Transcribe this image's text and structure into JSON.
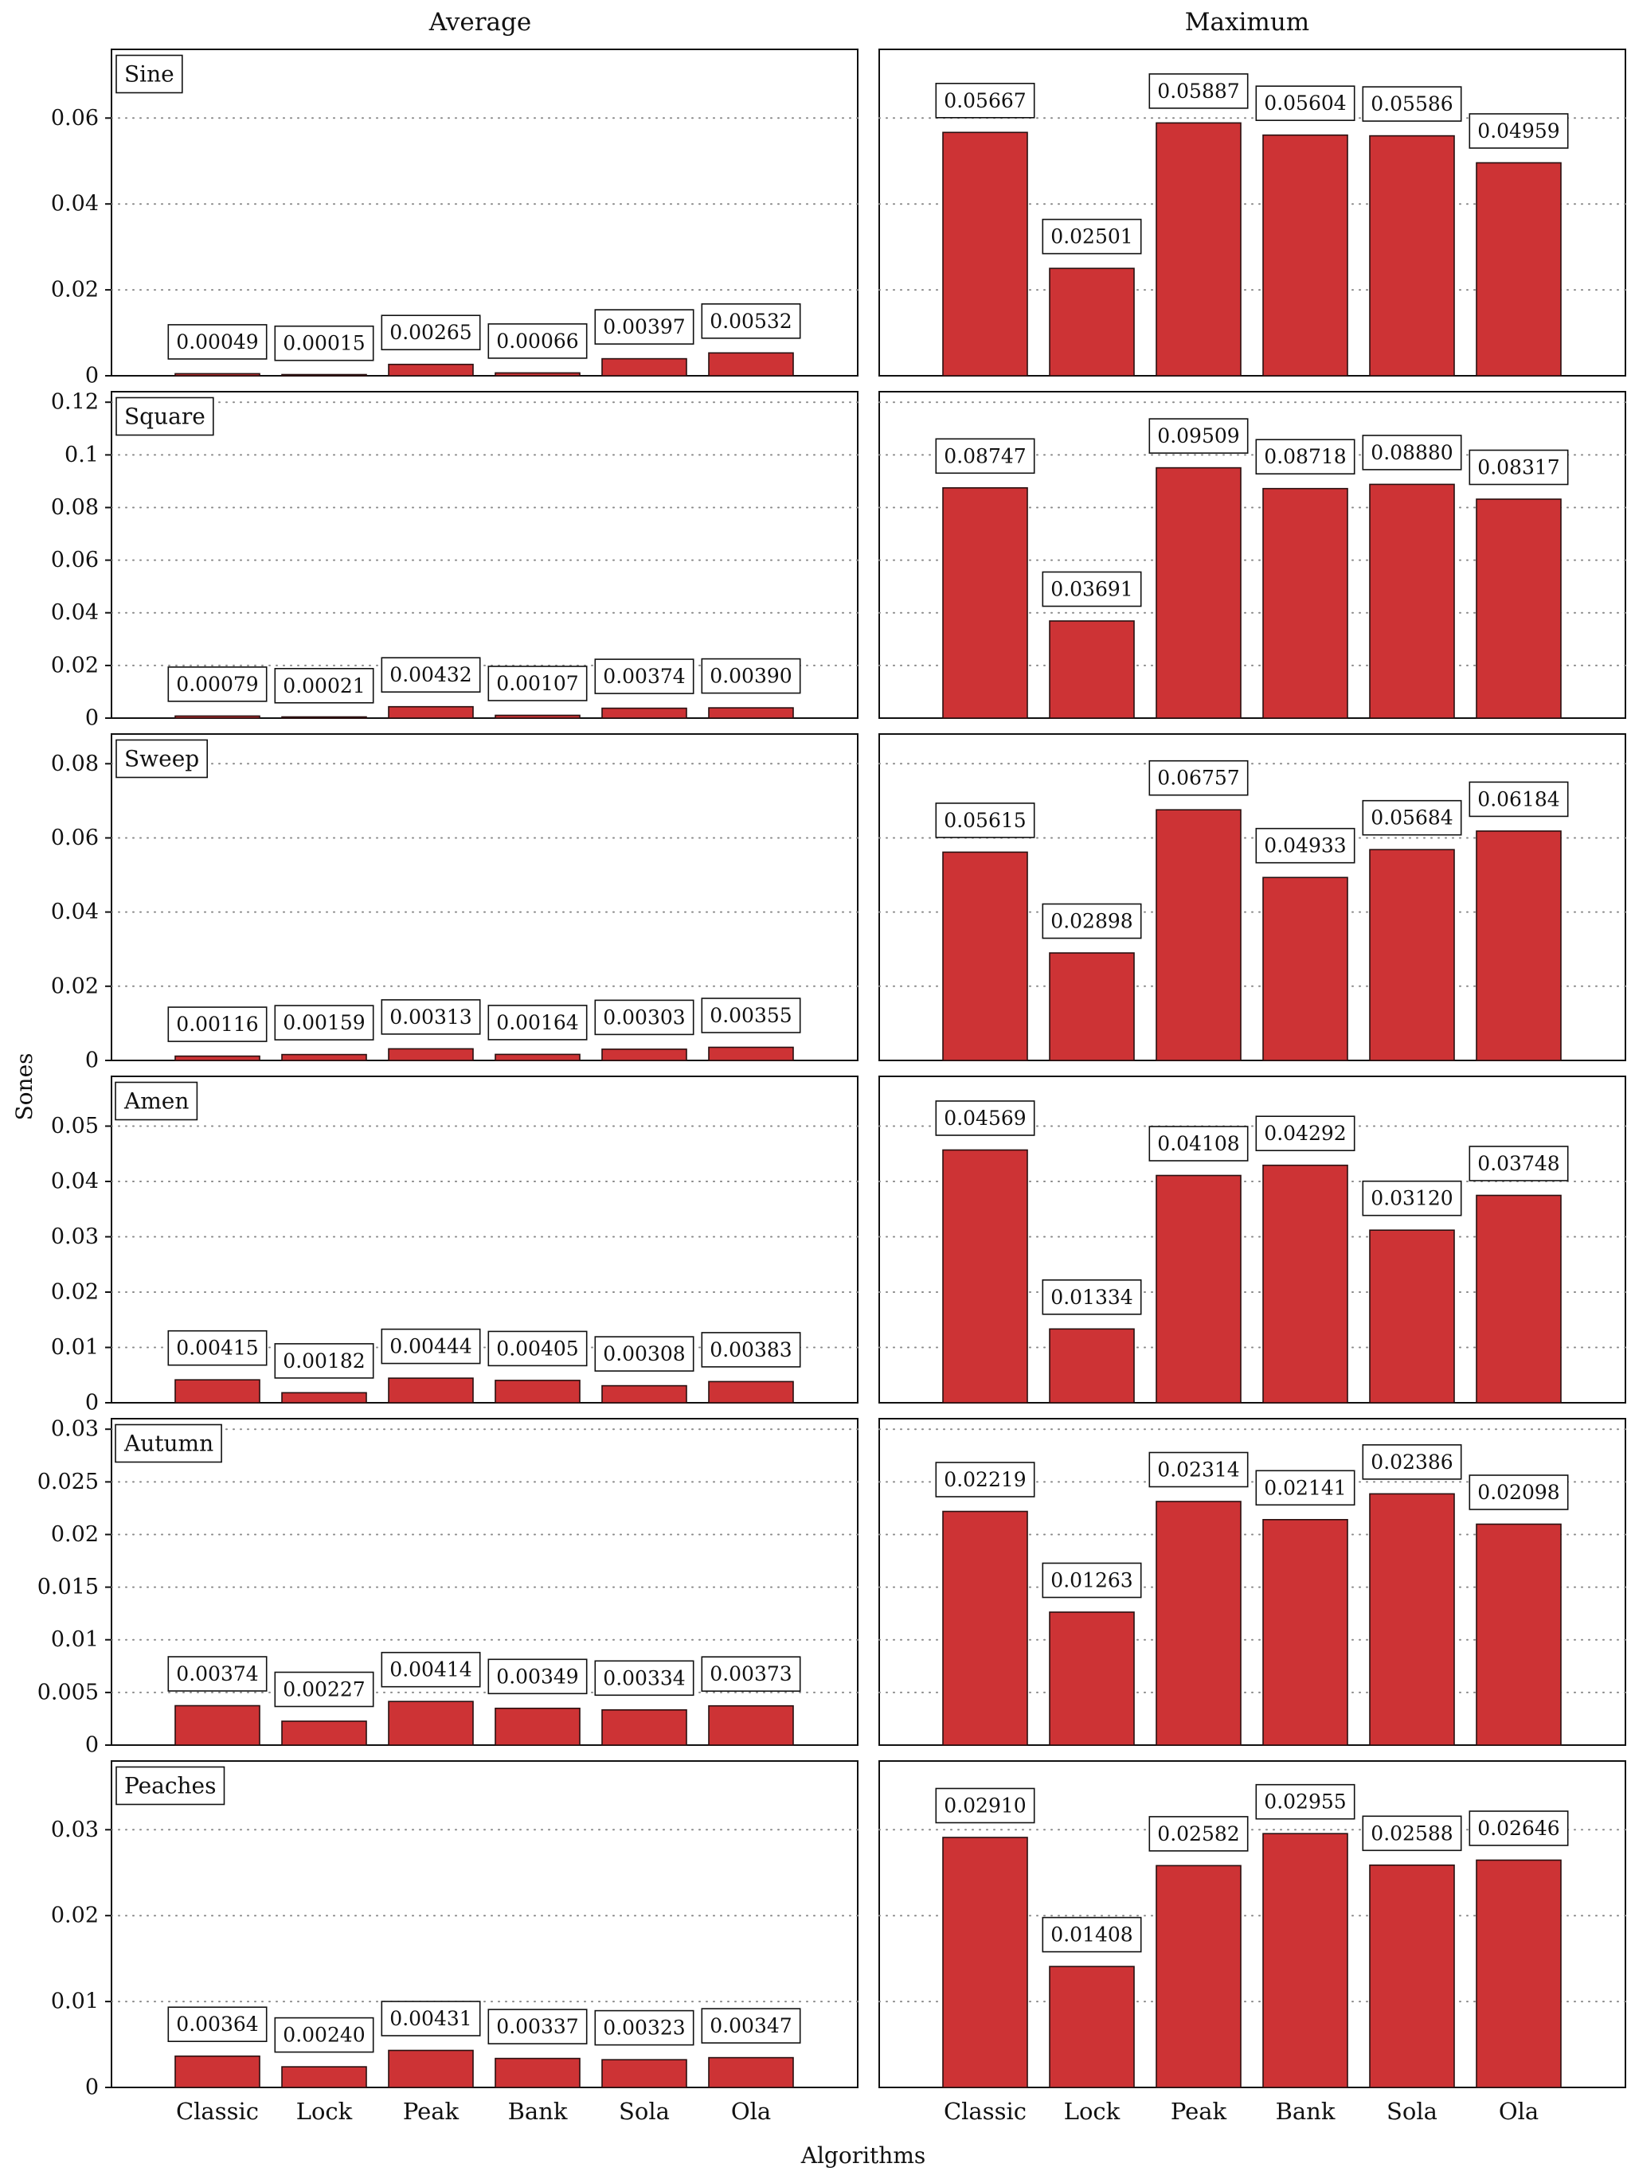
{
  "figure": {
    "column_titles": [
      "Average",
      "Maximum"
    ],
    "xlabel": "Algorithms",
    "ylabel": "Sones"
  },
  "colors": {
    "bar_fill": "#cd3335",
    "bar_stroke": "#2a1010",
    "grid": "#888888",
    "frame": "#111111"
  },
  "chart_data": [
    {
      "type": "bar",
      "panel": "Sine",
      "column": "Average",
      "label": "Sine",
      "categories": [
        "Classic",
        "Lock",
        "Peak",
        "Bank",
        "Sola",
        "Ola"
      ],
      "values": [
        0.00049,
        0.00015,
        0.00265,
        0.00066,
        0.00397,
        0.00532
      ],
      "data_labels": [
        "0.00049",
        "0.00015",
        "0.00265",
        "0.00066",
        "0.00397",
        "0.00532"
      ],
      "ylim": [
        0,
        0.076
      ],
      "yticks": [
        0,
        0.02,
        0.04,
        0.06
      ],
      "ytick_labels": [
        "0",
        "0.02",
        "0.04",
        "0.06"
      ],
      "grid": true,
      "legend": "top-left"
    },
    {
      "type": "bar",
      "panel": "Sine",
      "column": "Maximum",
      "categories": [
        "Classic",
        "Lock",
        "Peak",
        "Bank",
        "Sola",
        "Ola"
      ],
      "values": [
        0.05667,
        0.02501,
        0.05887,
        0.05604,
        0.05586,
        0.04959
      ],
      "data_labels": [
        "0.05667",
        "0.02501",
        "0.05887",
        "0.05604",
        "0.05586",
        "0.04959"
      ],
      "ylim": [
        0,
        0.076
      ],
      "yticks": [
        0,
        0.02,
        0.04,
        0.06
      ],
      "grid": true
    },
    {
      "type": "bar",
      "panel": "Square",
      "column": "Average",
      "label": "Square",
      "categories": [
        "Classic",
        "Lock",
        "Peak",
        "Bank",
        "Sola",
        "Ola"
      ],
      "values": [
        0.00079,
        0.00021,
        0.00432,
        0.00107,
        0.00374,
        0.0039
      ],
      "data_labels": [
        "0.00079",
        "0.00021",
        "0.00432",
        "0.00107",
        "0.00374",
        "0.00390"
      ],
      "ylim": [
        0,
        0.124
      ],
      "yticks": [
        0,
        0.02,
        0.04,
        0.06,
        0.08,
        0.1,
        0.12
      ],
      "ytick_labels": [
        "0",
        "0.02",
        "0.04",
        "0.06",
        "0.08",
        "0.1",
        "0.12"
      ],
      "grid": true,
      "legend": "top-left"
    },
    {
      "type": "bar",
      "panel": "Square",
      "column": "Maximum",
      "categories": [
        "Classic",
        "Lock",
        "Peak",
        "Bank",
        "Sola",
        "Ola"
      ],
      "values": [
        0.08747,
        0.03691,
        0.09509,
        0.08718,
        0.0888,
        0.08317
      ],
      "data_labels": [
        "0.08747",
        "0.03691",
        "0.09509",
        "0.08718",
        "0.08880",
        "0.08317"
      ],
      "ylim": [
        0,
        0.124
      ],
      "yticks": [
        0,
        0.02,
        0.04,
        0.06,
        0.08,
        0.1,
        0.12
      ],
      "grid": true
    },
    {
      "type": "bar",
      "panel": "Sweep",
      "column": "Average",
      "label": "Sweep",
      "categories": [
        "Classic",
        "Lock",
        "Peak",
        "Bank",
        "Sola",
        "Ola"
      ],
      "values": [
        0.00116,
        0.00159,
        0.00313,
        0.00164,
        0.00303,
        0.00355
      ],
      "data_labels": [
        "0.00116",
        "0.00159",
        "0.00313",
        "0.00164",
        "0.00303",
        "0.00355"
      ],
      "ylim": [
        0,
        0.088
      ],
      "yticks": [
        0,
        0.02,
        0.04,
        0.06,
        0.08
      ],
      "ytick_labels": [
        "0",
        "0.02",
        "0.04",
        "0.06",
        "0.08"
      ],
      "grid": true,
      "legend": "top-left"
    },
    {
      "type": "bar",
      "panel": "Sweep",
      "column": "Maximum",
      "categories": [
        "Classic",
        "Lock",
        "Peak",
        "Bank",
        "Sola",
        "Ola"
      ],
      "values": [
        0.05615,
        0.02898,
        0.06757,
        0.04933,
        0.05684,
        0.06184
      ],
      "data_labels": [
        "0.05615",
        "0.02898",
        "0.06757",
        "0.04933",
        "0.05684",
        "0.06184"
      ],
      "ylim": [
        0,
        0.088
      ],
      "yticks": [
        0,
        0.02,
        0.04,
        0.06,
        0.08
      ],
      "grid": true
    },
    {
      "type": "bar",
      "panel": "Amen",
      "column": "Average",
      "label": "Amen",
      "categories": [
        "Classic",
        "Lock",
        "Peak",
        "Bank",
        "Sola",
        "Ola"
      ],
      "values": [
        0.00415,
        0.00182,
        0.00444,
        0.00405,
        0.00308,
        0.00383
      ],
      "data_labels": [
        "0.00415",
        "0.00182",
        "0.00444",
        "0.00405",
        "0.00308",
        "0.00383"
      ],
      "ylim": [
        0,
        0.059
      ],
      "yticks": [
        0,
        0.01,
        0.02,
        0.03,
        0.04,
        0.05
      ],
      "ytick_labels": [
        "0",
        "0.01",
        "0.02",
        "0.03",
        "0.04",
        "0.05"
      ],
      "grid": true,
      "legend": "top-left"
    },
    {
      "type": "bar",
      "panel": "Amen",
      "column": "Maximum",
      "categories": [
        "Classic",
        "Lock",
        "Peak",
        "Bank",
        "Sola",
        "Ola"
      ],
      "values": [
        0.04569,
        0.01334,
        0.04108,
        0.04292,
        0.0312,
        0.03748
      ],
      "data_labels": [
        "0.04569",
        "0.01334",
        "0.04108",
        "0.04292",
        "0.03120",
        "0.03748"
      ],
      "ylim": [
        0,
        0.059
      ],
      "yticks": [
        0,
        0.01,
        0.02,
        0.03,
        0.04,
        0.05
      ],
      "grid": true
    },
    {
      "type": "bar",
      "panel": "Autumn",
      "column": "Average",
      "label": "Autumn",
      "categories": [
        "Classic",
        "Lock",
        "Peak",
        "Bank",
        "Sola",
        "Ola"
      ],
      "values": [
        0.00374,
        0.00227,
        0.00414,
        0.00349,
        0.00334,
        0.00373
      ],
      "data_labels": [
        "0.00374",
        "0.00227",
        "0.00414",
        "0.00349",
        "0.00334",
        "0.00373"
      ],
      "ylim": [
        0,
        0.031
      ],
      "yticks": [
        0,
        0.005,
        0.01,
        0.015,
        0.02,
        0.025,
        0.03
      ],
      "ytick_labels": [
        "0",
        "0.005",
        "0.01",
        "0.015",
        "0.02",
        "0.025",
        "0.03"
      ],
      "grid": true,
      "legend": "top-left"
    },
    {
      "type": "bar",
      "panel": "Autumn",
      "column": "Maximum",
      "categories": [
        "Classic",
        "Lock",
        "Peak",
        "Bank",
        "Sola",
        "Ola"
      ],
      "values": [
        0.02219,
        0.01263,
        0.02314,
        0.02141,
        0.02386,
        0.02098
      ],
      "data_labels": [
        "0.02219",
        "0.01263",
        "0.02314",
        "0.02141",
        "0.02386",
        "0.02098"
      ],
      "ylim": [
        0,
        0.031
      ],
      "yticks": [
        0,
        0.005,
        0.01,
        0.015,
        0.02,
        0.025,
        0.03
      ],
      "grid": true
    },
    {
      "type": "bar",
      "panel": "Peaches",
      "column": "Average",
      "label": "Peaches",
      "categories": [
        "Classic",
        "Lock",
        "Peak",
        "Bank",
        "Sola",
        "Ola"
      ],
      "values": [
        0.00364,
        0.0024,
        0.00431,
        0.00337,
        0.00323,
        0.00347
      ],
      "data_labels": [
        "0.00364",
        "0.00240",
        "0.00431",
        "0.00337",
        "0.00323",
        "0.00347"
      ],
      "ylim": [
        0,
        0.038
      ],
      "yticks": [
        0,
        0.01,
        0.02,
        0.03
      ],
      "ytick_labels": [
        "0",
        "0.01",
        "0.02",
        "0.03"
      ],
      "xtick_labels": [
        "Classic",
        "Lock",
        "Peak",
        "Bank",
        "Sola",
        "Ola"
      ],
      "grid": true,
      "legend": "top-left"
    },
    {
      "type": "bar",
      "panel": "Peaches",
      "column": "Maximum",
      "categories": [
        "Classic",
        "Lock",
        "Peak",
        "Bank",
        "Sola",
        "Ola"
      ],
      "values": [
        0.0291,
        0.01408,
        0.02582,
        0.02955,
        0.02588,
        0.02646
      ],
      "data_labels": [
        "0.02910",
        "0.01408",
        "0.02582",
        "0.02955",
        "0.02588",
        "0.02646"
      ],
      "ylim": [
        0,
        0.038
      ],
      "yticks": [
        0,
        0.01,
        0.02,
        0.03
      ],
      "xtick_labels": [
        "Classic",
        "Lock",
        "Peak",
        "Bank",
        "Sola",
        "Ola"
      ],
      "grid": true
    }
  ]
}
